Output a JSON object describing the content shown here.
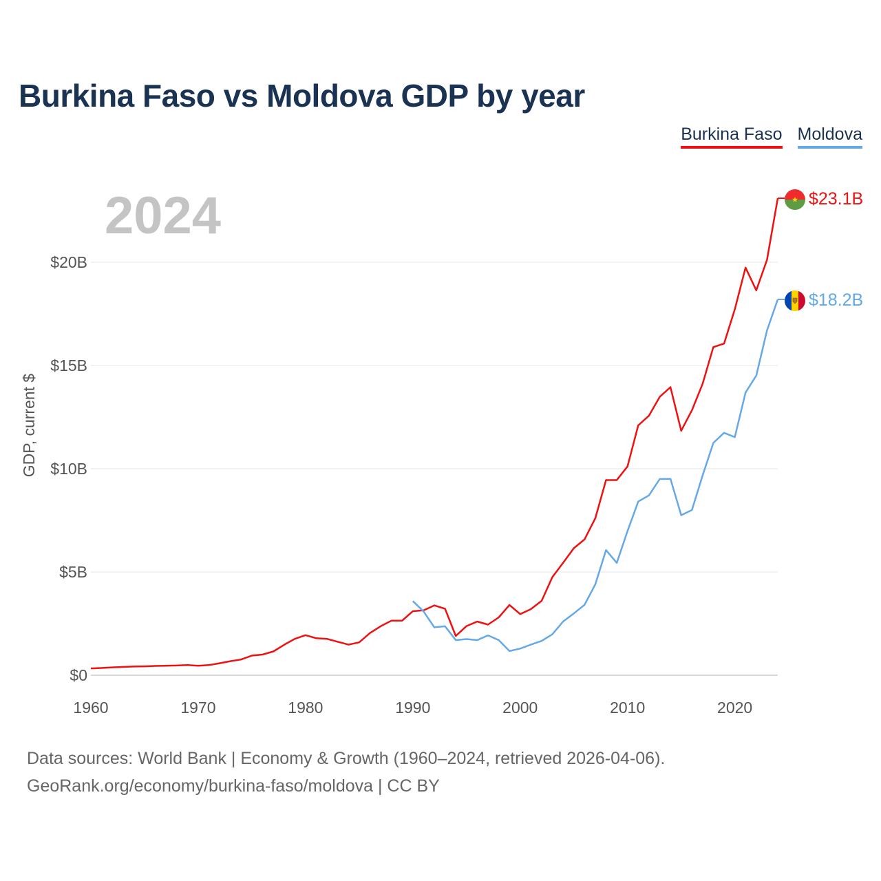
{
  "title": "Burkina Faso vs Moldova GDP by year",
  "year_watermark": "2024",
  "footer": {
    "line1": "Data sources: World Bank | Economy & Growth (1960–2024, retrieved 2026-04-06).",
    "line2": "GeoRank.org/economy/burkina-faso/moldova | CC BY"
  },
  "chart_data": {
    "type": "line",
    "title": "Burkina Faso vs Moldova GDP by year",
    "xlabel": "",
    "ylabel": "GDP, current $",
    "xlim": [
      1960,
      2024
    ],
    "ylim": [
      0,
      23.1
    ],
    "y_unit": "billion USD",
    "y_ticks": [
      {
        "value": 0,
        "label": "$0"
      },
      {
        "value": 5,
        "label": "$5B"
      },
      {
        "value": 10,
        "label": "$10B"
      },
      {
        "value": 15,
        "label": "$15B"
      },
      {
        "value": 20,
        "label": "$20B"
      }
    ],
    "x_ticks": [
      {
        "value": 1960,
        "label": "1960"
      },
      {
        "value": 1970,
        "label": "1970"
      },
      {
        "value": 1980,
        "label": "1980"
      },
      {
        "value": 1990,
        "label": "1990"
      },
      {
        "value": 2000,
        "label": "2000"
      },
      {
        "value": 2010,
        "label": "2010"
      },
      {
        "value": 2020,
        "label": "2020"
      }
    ],
    "legend_position": "top-right",
    "series": [
      {
        "name": "Burkina Faso",
        "color": "#ee1111",
        "end_label": "$23.1B",
        "flag_icon": "burkina-faso-flag-icon",
        "x": [
          1960,
          1961,
          1962,
          1963,
          1964,
          1965,
          1966,
          1967,
          1968,
          1969,
          1970,
          1971,
          1972,
          1973,
          1974,
          1975,
          1976,
          1977,
          1978,
          1979,
          1980,
          1981,
          1982,
          1983,
          1984,
          1985,
          1986,
          1987,
          1988,
          1989,
          1990,
          1991,
          1992,
          1993,
          1994,
          1995,
          1996,
          1997,
          1998,
          1999,
          2000,
          2001,
          2002,
          2003,
          2004,
          2005,
          2006,
          2007,
          2008,
          2009,
          2010,
          2011,
          2012,
          2013,
          2014,
          2015,
          2016,
          2017,
          2018,
          2019,
          2020,
          2021,
          2022,
          2023,
          2024
        ],
        "values": [
          0.33,
          0.35,
          0.38,
          0.4,
          0.42,
          0.43,
          0.45,
          0.46,
          0.47,
          0.49,
          0.46,
          0.49,
          0.58,
          0.68,
          0.76,
          0.95,
          1.0,
          1.15,
          1.47,
          1.76,
          1.94,
          1.79,
          1.76,
          1.62,
          1.48,
          1.59,
          2.04,
          2.37,
          2.64,
          2.64,
          3.1,
          3.14,
          3.38,
          3.22,
          1.9,
          2.38,
          2.6,
          2.45,
          2.8,
          3.4,
          2.96,
          3.2,
          3.6,
          4.75,
          5.44,
          6.15,
          6.58,
          7.6,
          9.45,
          9.45,
          10.11,
          12.1,
          12.57,
          13.48,
          13.95,
          11.84,
          12.83,
          14.11,
          15.89,
          16.06,
          17.72,
          19.74,
          18.64,
          20.12,
          23.1
        ]
      },
      {
        "name": "Moldova",
        "color": "#64a8e8",
        "end_label": "$18.2B",
        "flag_icon": "moldova-flag-icon",
        "x": [
          1990,
          1991,
          1992,
          1993,
          1994,
          1995,
          1996,
          1997,
          1998,
          1999,
          2000,
          2001,
          2002,
          2003,
          2004,
          2005,
          2006,
          2007,
          2008,
          2009,
          2010,
          2011,
          2012,
          2013,
          2014,
          2015,
          2016,
          2017,
          2018,
          2019,
          2020,
          2021,
          2022,
          2023,
          2024
        ],
        "values": [
          3.59,
          3.09,
          2.32,
          2.37,
          1.7,
          1.75,
          1.7,
          1.93,
          1.7,
          1.17,
          1.29,
          1.48,
          1.66,
          1.98,
          2.6,
          2.99,
          3.41,
          4.4,
          6.06,
          5.44,
          6.98,
          8.41,
          8.71,
          9.5,
          9.51,
          7.75,
          8.0,
          9.67,
          11.25,
          11.74,
          11.53,
          13.69,
          14.51,
          16.7,
          18.2
        ]
      }
    ]
  }
}
